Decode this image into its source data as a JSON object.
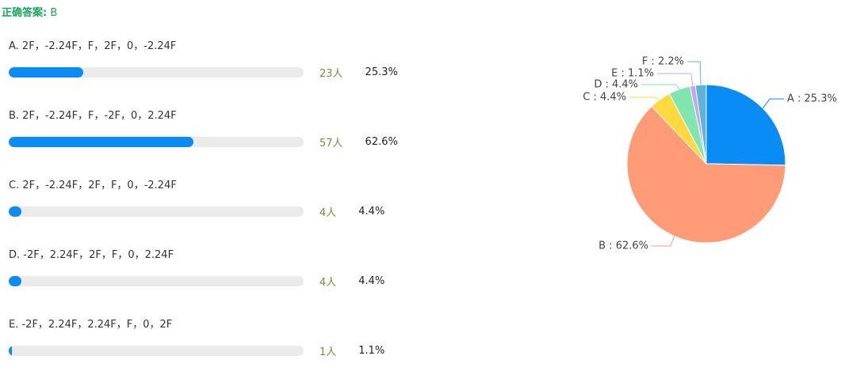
{
  "answer": {
    "label": "正确答案:",
    "value": "B"
  },
  "options": [
    {
      "text": "A. 2F，-2.24F，F，2F，0，-2.24F",
      "count": "23人",
      "percent": 25.3,
      "percent_label": "25.3%"
    },
    {
      "text": "B. 2F，-2.24F，F，-2F，0，2.24F",
      "count": "57人",
      "percent": 62.6,
      "percent_label": "62.6%"
    },
    {
      "text": "C. 2F，-2.24F，2F，F，0，-2.24F",
      "count": "4人",
      "percent": 4.4,
      "percent_label": "4.4%"
    },
    {
      "text": "D. -2F，2.24F，2F，F，0，2.24F",
      "count": "4人",
      "percent": 4.4,
      "percent_label": "4.4%"
    },
    {
      "text": "E. -2F，2.24F，2.24F，F，0，2F",
      "count": "1人",
      "percent": 1.1,
      "percent_label": "1.1%"
    }
  ],
  "chart_data": {
    "type": "pie",
    "values": [
      25.3,
      62.6,
      4.4,
      4.4,
      1.1,
      2.2
    ],
    "value_labels": [
      "A : 25.3%",
      "B : 62.6%",
      "C : 4.4%",
      "D : 4.4%",
      "E : 1.1%",
      "F : 2.2%"
    ],
    "colors": [
      "#0a8cf7",
      "#ff9b76",
      "#ffd93f",
      "#7fe6b0",
      "#c8a2f5",
      "#5fb3d9"
    ]
  }
}
